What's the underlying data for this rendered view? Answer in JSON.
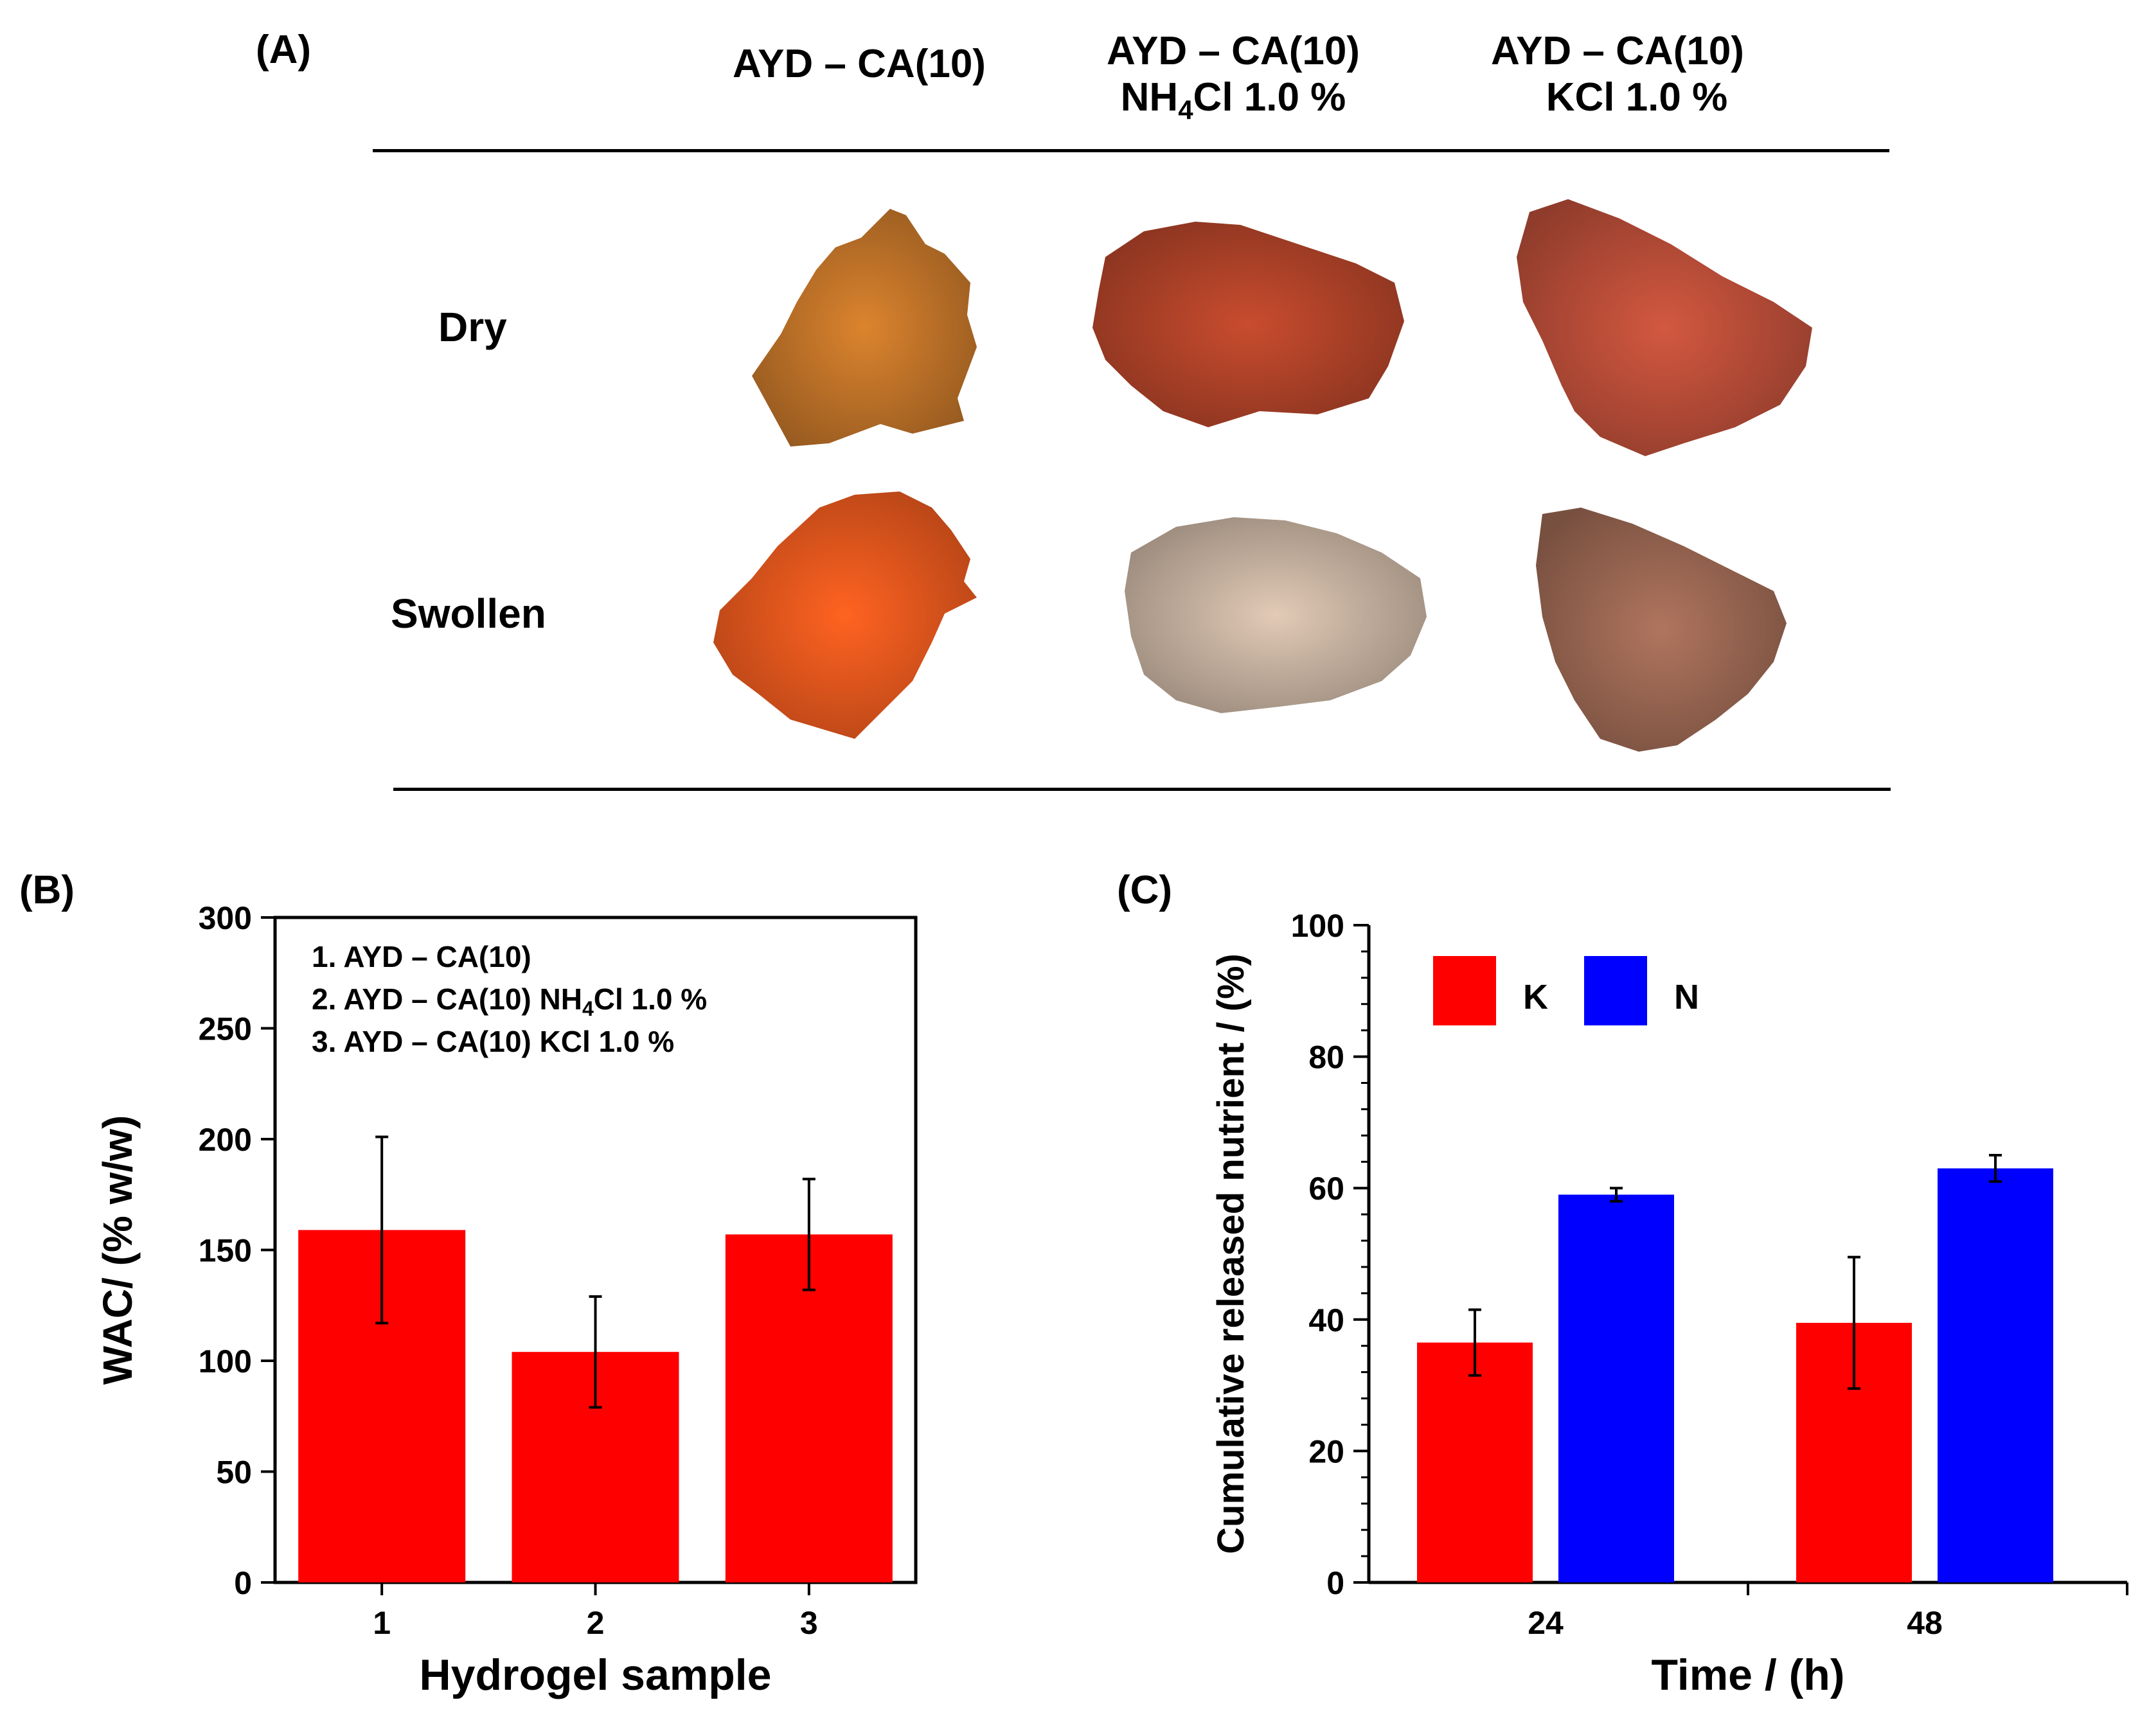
{
  "panel_a": {
    "label": "(A)",
    "columns": [
      {
        "line1": "AYD – CA(10)",
        "line2": ""
      },
      {
        "line1": "AYD – CA(10)",
        "line2_main": "NH",
        "line2_sub": "4",
        "line2_rest": "Cl 1.0 %"
      },
      {
        "line1": "AYD – CA(10)",
        "line2_main": "KCl 1.0 %",
        "line2_sub": "",
        "line2_rest": ""
      }
    ],
    "rows": [
      "Dry",
      "Swollen"
    ],
    "colors": {
      "dry": [
        "#c8782a",
        "#b7452a",
        "#c0503a"
      ],
      "swollen": [
        "#f05a1e",
        "#cdb8a5",
        "#a06a55"
      ]
    }
  },
  "chart_data": [
    {
      "panel_label": "(B)",
      "type": "bar",
      "categories": [
        "1",
        "2",
        "3"
      ],
      "values": [
        159,
        104,
        157
      ],
      "errors": [
        42,
        25,
        25
      ],
      "xlabel": "Hydrogel sample",
      "ylabel": "WAC/ (% w/w)",
      "ylim": [
        0,
        300
      ],
      "yticks": [
        "0",
        "50",
        "100",
        "150",
        "200",
        "250",
        "300"
      ],
      "bar_color": "#ff0000",
      "legend_lines": [
        {
          "prefix": "1.  AYD – CA(10)",
          "sub": "",
          "suffix": ""
        },
        {
          "prefix": "2.  AYD – CA(10) NH",
          "sub": "4",
          "suffix": "Cl 1.0 %"
        },
        {
          "prefix": "3.  AYD – CA(10) KCl 1.0 %",
          "sub": "",
          "suffix": ""
        }
      ]
    },
    {
      "panel_label": "(C)",
      "type": "bar",
      "categories": [
        "24",
        "48"
      ],
      "series": [
        {
          "name": "K",
          "values": [
            36.5,
            39.5
          ],
          "errors": [
            5,
            10
          ],
          "color": "#ff0000"
        },
        {
          "name": "N",
          "values": [
            59,
            63
          ],
          "errors": [
            1,
            2
          ],
          "color": "#0000ff"
        }
      ],
      "xlabel": "Time / (h)",
      "ylabel": "Cumulative released nutrient / (%)",
      "ylim": [
        0,
        100
      ],
      "yticks": [
        "0",
        "20",
        "40",
        "60",
        "80",
        "100"
      ],
      "legend_position": "top-left"
    }
  ]
}
